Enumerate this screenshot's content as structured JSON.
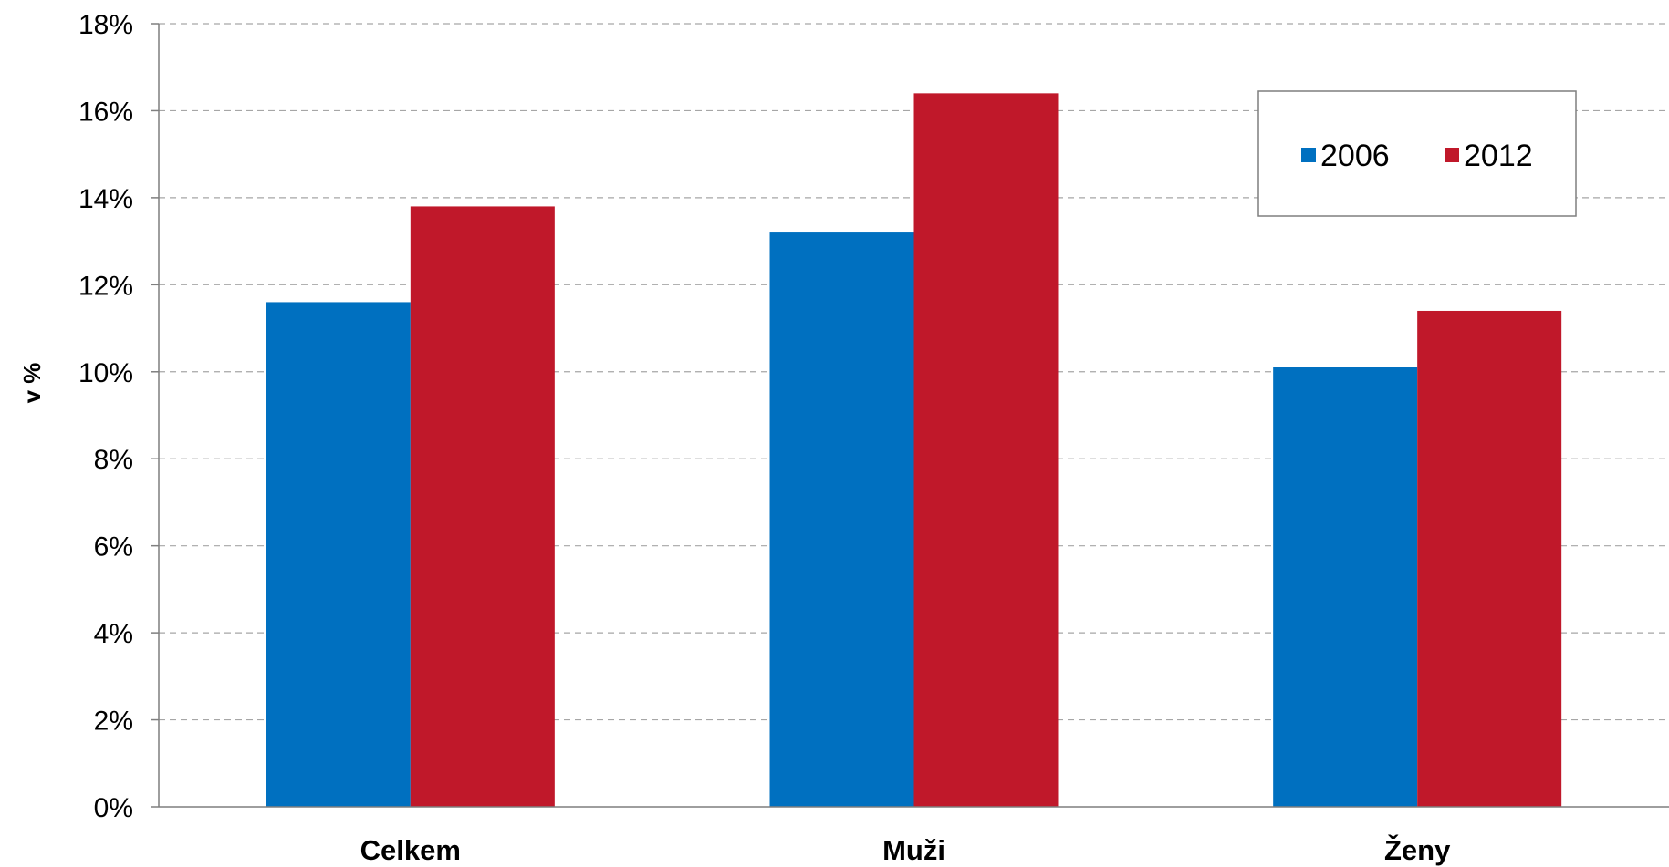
{
  "chart_data": {
    "type": "bar",
    "title": "",
    "xlabel": "",
    "ylabel": "v %",
    "categories": [
      "Celkem",
      "Muži",
      "Ženy"
    ],
    "series": [
      {
        "name": "2006",
        "color": "#0070C0",
        "values": [
          11.6,
          13.2,
          10.1
        ]
      },
      {
        "name": "2012",
        "color": "#C0182A",
        "values": [
          13.8,
          16.4,
          11.4
        ]
      }
    ],
    "ylim": [
      0,
      18
    ],
    "ytick_step": 2,
    "ytick_labels": [
      "0%",
      "2%",
      "4%",
      "6%",
      "8%",
      "10%",
      "12%",
      "14%",
      "16%",
      "18%"
    ],
    "grid": true,
    "legend": "top-right"
  }
}
